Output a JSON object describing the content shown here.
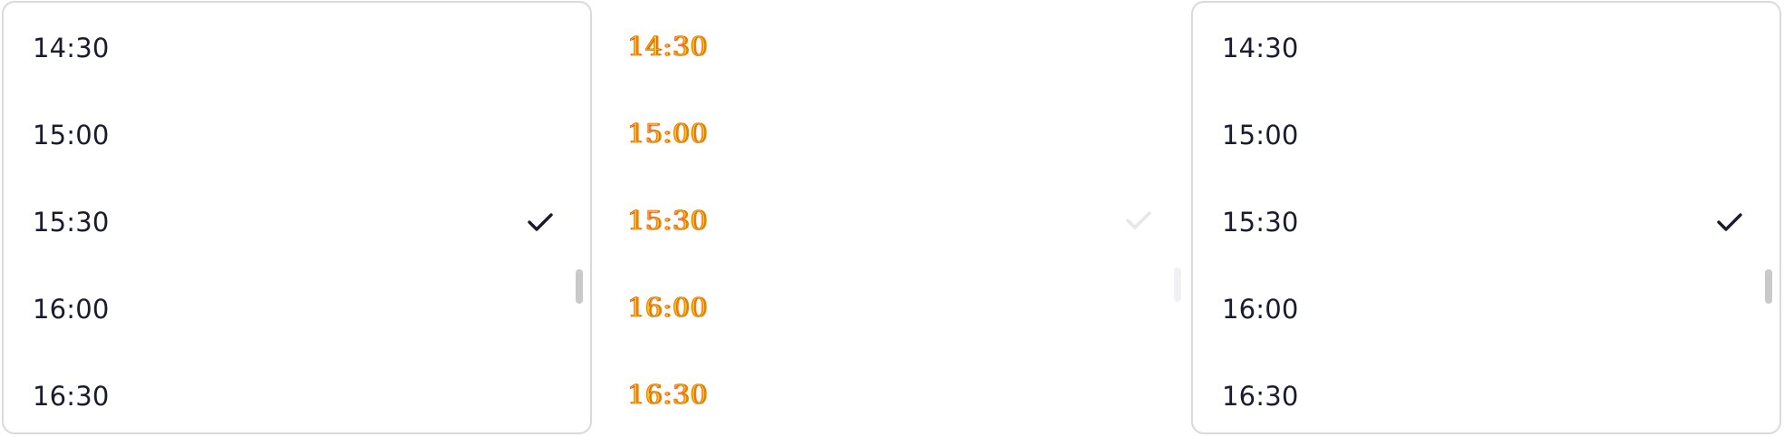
{
  "time_list": {
    "options": [
      "14:30",
      "15:00",
      "15:30",
      "16:00",
      "16:30"
    ],
    "selected": "15:30",
    "selected_index": 2
  },
  "icons": {
    "selected_marker": "check-icon"
  },
  "colors": {
    "text": "#1a1b2e",
    "panel_border": "#d9d9de",
    "scrollbar_thumb": "#c9c9cc",
    "diff_text": "#f5c518",
    "diff_outline": "#e0301e"
  }
}
